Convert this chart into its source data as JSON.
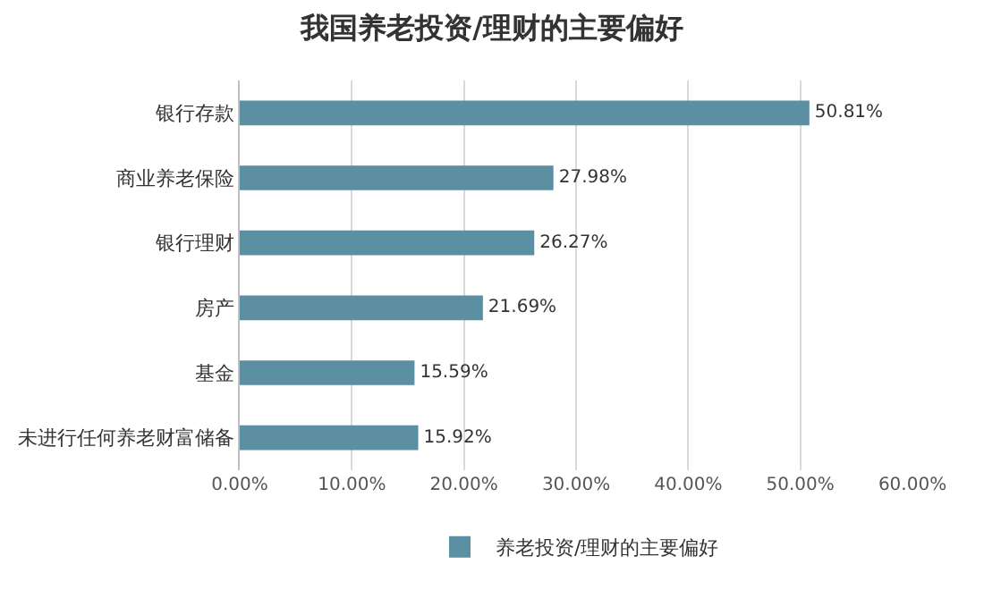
{
  "chart_data": {
    "type": "bar",
    "orientation": "horizontal",
    "title": "我国养老投资/理财的主要偏好",
    "categories": [
      "银行存款",
      "商业养老保险",
      "银行理财",
      "房产",
      "基金",
      "未进行任何养老财富储备"
    ],
    "series": [
      {
        "name": "养老投资/理财的主要偏好",
        "color": "#5b8fa1",
        "values": [
          50.81,
          27.98,
          26.27,
          21.69,
          15.59,
          15.92
        ],
        "value_labels": [
          "50.81%",
          "27.98%",
          "26.27%",
          "21.69%",
          "15.59%",
          "15.92%"
        ]
      }
    ],
    "xlim": [
      0,
      60
    ],
    "xticks": [
      {
        "value": 0,
        "label": "0.00%"
      },
      {
        "value": 10,
        "label": "10.00%"
      },
      {
        "value": 20,
        "label": "20.00%"
      },
      {
        "value": 30,
        "label": "30.00%"
      },
      {
        "value": 40,
        "label": "40.00%"
      },
      {
        "value": 50,
        "label": "50.00%"
      },
      {
        "value": 60,
        "label": "60.00%"
      }
    ],
    "grid": "x",
    "legend": "bottom"
  }
}
